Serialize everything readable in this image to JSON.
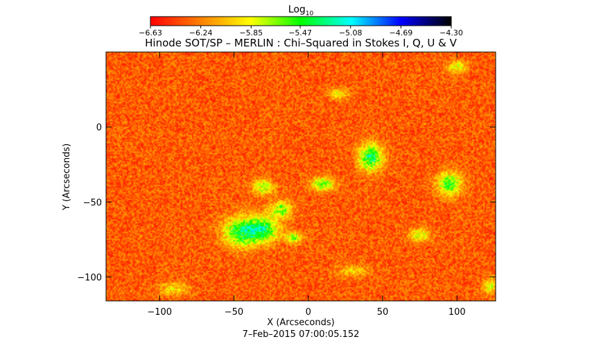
{
  "chart_data": {
    "type": "heatmap",
    "title": "Hinode SOT/SP – MERLIN : Chi–Squared in Stokes I, Q, U & V",
    "xlabel": "X (Arcseconds)",
    "ylabel": "Y (Arcseconds)",
    "timestamp": "7–Feb–2015 07:00:05.152",
    "xlim": [
      -136,
      126
    ],
    "ylim": [
      -116,
      50
    ],
    "x_ticks": [
      -100,
      -50,
      0,
      50,
      100
    ],
    "x_tick_labels": [
      "−100",
      "−50",
      "0",
      "50",
      "100"
    ],
    "y_ticks": [
      -100,
      -50,
      0
    ],
    "y_tick_labels": [
      "−100",
      "−50",
      "0"
    ],
    "colorbar": {
      "label": "Log",
      "label_subscript": "10",
      "min": -6.63,
      "max": -4.3,
      "ticks": [
        -6.63,
        -6.24,
        -5.85,
        -5.47,
        -5.08,
        -4.69,
        -4.3
      ],
      "tick_labels": [
        "−6.63",
        "−6.24",
        "−5.85",
        "−5.47",
        "−5.08",
        "−4.69",
        "−4.30"
      ],
      "colors": [
        "#ff0000",
        "#ff8000",
        "#ffff00",
        "#00ff00",
        "#00ffff",
        "#0000ff",
        "#000000"
      ]
    },
    "background_value": -6.35,
    "regions": [
      {
        "x": -45,
        "y": -70,
        "rx": 14,
        "ry": 11,
        "peak": -5.4
      },
      {
        "x": -30,
        "y": -68,
        "rx": 12,
        "ry": 10,
        "peak": -5.5
      },
      {
        "x": -18,
        "y": -55,
        "rx": 8,
        "ry": 6,
        "peak": -5.6
      },
      {
        "x": -30,
        "y": -40,
        "rx": 8,
        "ry": 6,
        "peak": -5.7
      },
      {
        "x": 10,
        "y": -38,
        "rx": 9,
        "ry": 5,
        "peak": -5.6
      },
      {
        "x": -10,
        "y": -74,
        "rx": 6,
        "ry": 4,
        "peak": -5.6
      },
      {
        "x": 42,
        "y": -20,
        "rx": 9,
        "ry": 10,
        "peak": -5.35
      },
      {
        "x": 95,
        "y": -38,
        "rx": 9,
        "ry": 9,
        "peak": -5.5
      },
      {
        "x": 75,
        "y": -72,
        "rx": 8,
        "ry": 5,
        "peak": -5.8
      },
      {
        "x": 100,
        "y": 40,
        "rx": 8,
        "ry": 5,
        "peak": -5.85
      },
      {
        "x": 20,
        "y": 22,
        "rx": 8,
        "ry": 4,
        "peak": -5.9
      },
      {
        "x": -90,
        "y": -108,
        "rx": 12,
        "ry": 5,
        "peak": -5.95
      },
      {
        "x": 30,
        "y": -96,
        "rx": 12,
        "ry": 4,
        "peak": -5.95
      },
      {
        "x": 122,
        "y": -106,
        "rx": 5,
        "ry": 6,
        "peak": -5.8
      }
    ]
  }
}
